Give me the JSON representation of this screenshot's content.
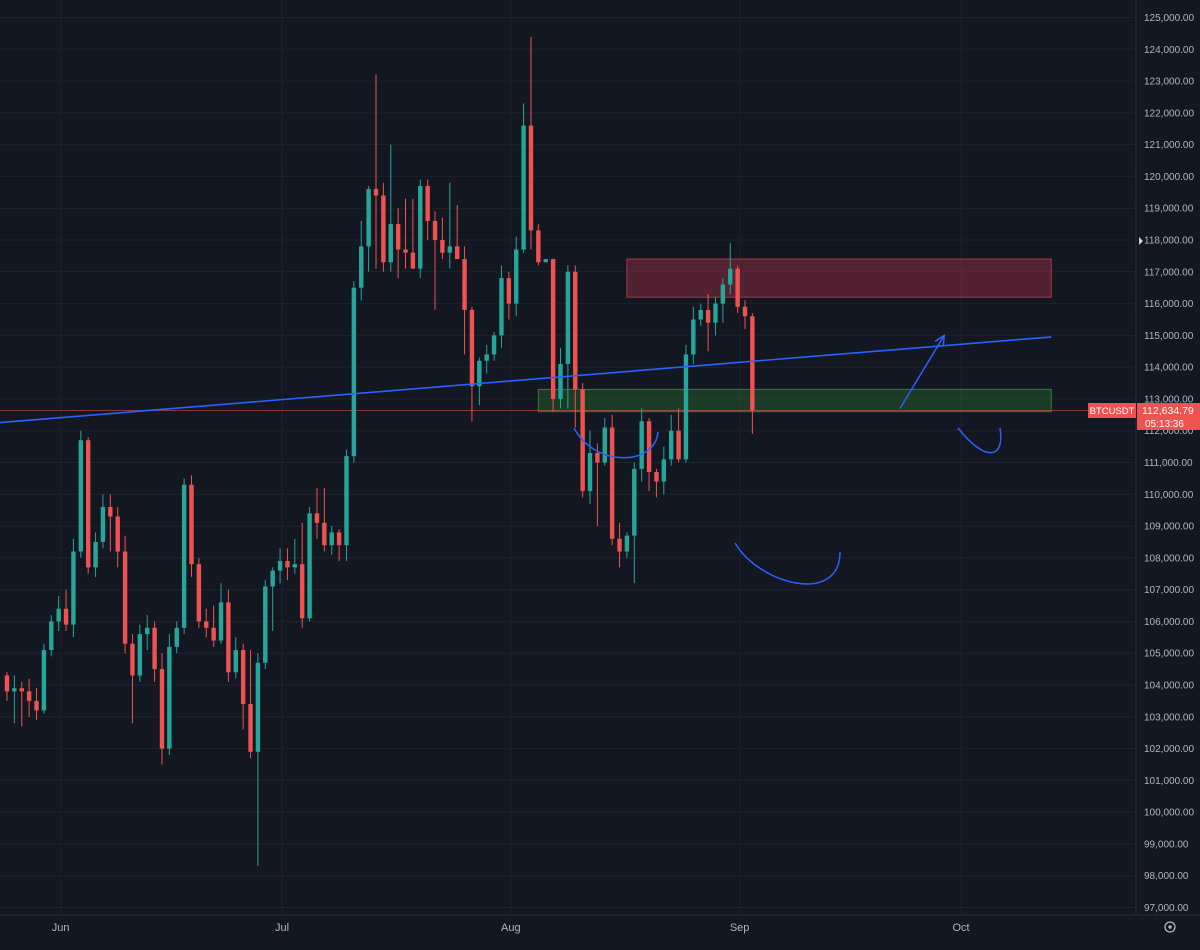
{
  "chart_data": {
    "type": "candlestick",
    "symbol": "BTCUSDT",
    "last_price": "112,634.79",
    "countdown": "05:13:36",
    "ylim": [
      96800,
      125300
    ],
    "y_ticks": [
      "125,000.00",
      "124,000.00",
      "123,000.00",
      "122,000.00",
      "121,000.00",
      "120,000.00",
      "119,000.00",
      "118,000.00",
      "117,000.00",
      "116,000.00",
      "115,000.00",
      "114,000.00",
      "113,000.00",
      "112,000.00",
      "111,000.00",
      "110,000.00",
      "109,000.00",
      "108,000.00",
      "107,000.00",
      "106,000.00",
      "105,000.00",
      "104,000.00",
      "103,000.00",
      "102,000.00",
      "101,000.00",
      "100,000.00",
      "99,000.00",
      "98,000.00",
      "97,000.00"
    ],
    "x_ticks": [
      "Jun",
      "Jul",
      "Aug",
      "Sep",
      "Oct"
    ],
    "x_tick_bars": [
      7,
      37,
      68,
      99,
      129
    ],
    "grid": true,
    "colors": {
      "up": "#26a69a",
      "down": "#ef5350",
      "trendline": "#2962ff",
      "resistance": "#b2324a",
      "support": "#2e7d32",
      "background": "#131722"
    },
    "candles": [
      [
        104300,
        104400,
        103500,
        103800
      ],
      [
        103800,
        104300,
        102800,
        103900
      ],
      [
        103900,
        104100,
        102700,
        103800
      ],
      [
        103800,
        104200,
        103000,
        103500
      ],
      [
        103500,
        103900,
        102900,
        103200
      ],
      [
        103200,
        105300,
        103100,
        105100
      ],
      [
        105100,
        106200,
        104900,
        106000
      ],
      [
        106000,
        106800,
        105700,
        106400
      ],
      [
        106400,
        107000,
        105700,
        105900
      ],
      [
        105900,
        108600,
        105500,
        108200
      ],
      [
        108200,
        112000,
        108000,
        111700
      ],
      [
        111700,
        111800,
        107500,
        107700
      ],
      [
        107700,
        108800,
        107400,
        108500
      ],
      [
        108500,
        110000,
        108300,
        109600
      ],
      [
        109600,
        110000,
        108200,
        109300
      ],
      [
        109300,
        109600,
        107700,
        108200
      ],
      [
        108200,
        108700,
        105000,
        105300
      ],
      [
        105300,
        105600,
        102800,
        104300
      ],
      [
        104300,
        105900,
        104100,
        105600
      ],
      [
        105600,
        106200,
        105100,
        105800
      ],
      [
        105800,
        106000,
        104100,
        104500
      ],
      [
        104500,
        105000,
        101500,
        102000
      ],
      [
        102000,
        105600,
        101800,
        105200
      ],
      [
        105200,
        106000,
        105000,
        105800
      ],
      [
        105800,
        110500,
        105600,
        110300
      ],
      [
        110300,
        110600,
        107400,
        107800
      ],
      [
        107800,
        108000,
        105800,
        106000
      ],
      [
        106000,
        106400,
        105500,
        105800
      ],
      [
        105800,
        106500,
        105200,
        105400
      ],
      [
        105400,
        107200,
        105300,
        106600
      ],
      [
        106600,
        107000,
        104100,
        104400
      ],
      [
        104400,
        105500,
        104200,
        105100
      ],
      [
        105100,
        105300,
        102600,
        103400
      ],
      [
        103400,
        105100,
        101700,
        101900
      ],
      [
        101900,
        105000,
        98300,
        104700
      ],
      [
        104700,
        107300,
        104500,
        107100
      ],
      [
        107100,
        107700,
        105700,
        107600
      ],
      [
        107600,
        108300,
        107200,
        107900
      ],
      [
        107900,
        108300,
        107300,
        107700
      ],
      [
        107700,
        108600,
        107500,
        107800
      ],
      [
        107800,
        109100,
        105800,
        106100
      ],
      [
        106100,
        109600,
        106000,
        109400
      ],
      [
        109400,
        110200,
        108600,
        109100
      ],
      [
        109100,
        110200,
        108200,
        108400
      ],
      [
        108400,
        109000,
        108100,
        108800
      ],
      [
        108800,
        108900,
        107900,
        108400
      ],
      [
        108400,
        111400,
        107900,
        111200
      ],
      [
        111200,
        116700,
        111000,
        116500
      ],
      [
        116500,
        118600,
        116100,
        117800
      ],
      [
        117800,
        119700,
        117000,
        119600
      ],
      [
        119600,
        123200,
        117100,
        119400
      ],
      [
        119400,
        119800,
        117000,
        117300
      ],
      [
        117300,
        121000,
        117000,
        118500
      ],
      [
        118500,
        119000,
        116800,
        117700
      ],
      [
        117700,
        119300,
        117100,
        117600
      ],
      [
        117600,
        119300,
        117100,
        117100
      ],
      [
        117100,
        119900,
        116800,
        119700
      ],
      [
        119700,
        119900,
        118000,
        118600
      ],
      [
        118600,
        118900,
        115800,
        118000
      ],
      [
        118000,
        118700,
        117400,
        117600
      ],
      [
        117600,
        119800,
        117100,
        117800
      ],
      [
        117800,
        119100,
        117400,
        117400
      ],
      [
        117400,
        117800,
        114400,
        115800
      ],
      [
        115800,
        115900,
        112300,
        113400
      ],
      [
        113400,
        114300,
        112800,
        114200
      ],
      [
        114200,
        114700,
        113800,
        114400
      ],
      [
        114400,
        115100,
        114200,
        115000
      ],
      [
        115000,
        117200,
        114600,
        116800
      ],
      [
        116800,
        117000,
        115500,
        116000
      ],
      [
        116000,
        118100,
        115600,
        117700
      ],
      [
        117700,
        122300,
        117600,
        121600
      ],
      [
        121600,
        124400,
        117700,
        118300
      ],
      [
        118300,
        118500,
        117200,
        117300
      ],
      [
        117300,
        117400,
        117300,
        117400
      ],
      [
        117400,
        117400,
        112600,
        113000
      ],
      [
        113000,
        114600,
        112700,
        114100
      ],
      [
        114100,
        117200,
        112700,
        117000
      ],
      [
        117000,
        117200,
        112100,
        113300
      ],
      [
        113300,
        113500,
        109900,
        110100
      ],
      [
        110100,
        112000,
        109700,
        111300
      ],
      [
        111300,
        111600,
        109000,
        111000
      ],
      [
        111000,
        112400,
        110900,
        112100
      ],
      [
        112100,
        112500,
        108400,
        108600
      ],
      [
        108600,
        109100,
        107700,
        108200
      ],
      [
        108200,
        108800,
        108000,
        108700
      ],
      [
        108700,
        111000,
        107200,
        110800
      ],
      [
        110800,
        112700,
        110400,
        112300
      ],
      [
        112300,
        112400,
        110100,
        110700
      ],
      [
        110700,
        110800,
        109900,
        110400
      ],
      [
        110400,
        111500,
        110000,
        111100
      ],
      [
        111100,
        112500,
        110900,
        112000
      ],
      [
        112000,
        112700,
        111000,
        111100
      ],
      [
        111100,
        114700,
        111000,
        114400
      ],
      [
        114400,
        115900,
        114100,
        115500
      ],
      [
        115500,
        116000,
        115300,
        115800
      ],
      [
        115800,
        116300,
        114500,
        115400
      ],
      [
        115400,
        116200,
        115000,
        116000
      ],
      [
        116000,
        116800,
        115400,
        116600
      ],
      [
        116600,
        117900,
        116300,
        117100
      ],
      [
        117100,
        117200,
        115700,
        115900
      ],
      [
        115900,
        116100,
        115200,
        115600
      ],
      [
        115600,
        115700,
        111900,
        112634
      ]
    ],
    "annotations": [
      {
        "type": "trendline",
        "from": {
          "bar": -14.5,
          "price": 112000
        },
        "to": {
          "bar": 141.5,
          "price": 114950
        }
      },
      {
        "type": "zone",
        "name": "resistance",
        "bar_from": 84,
        "bar_to": 141.5,
        "low": 116200,
        "high": 117400
      },
      {
        "type": "zone",
        "name": "support",
        "bar_from": 72,
        "bar_to": 141.5,
        "low": 112600,
        "high": 113300
      },
      {
        "type": "arrow",
        "from": {
          "bar": 121,
          "price": 112700
        },
        "to": {
          "bar": 127,
          "price": 115000
        }
      }
    ]
  }
}
